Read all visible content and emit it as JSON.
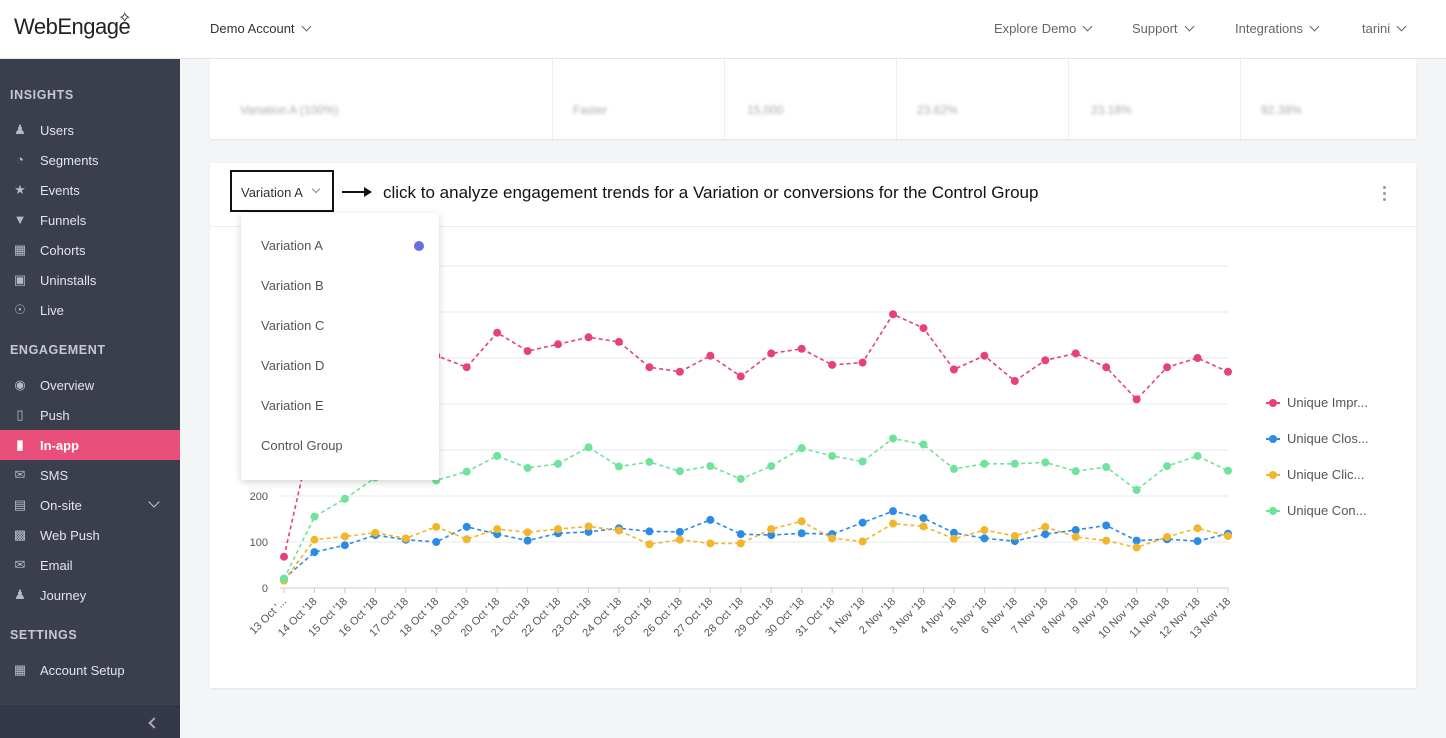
{
  "header": {
    "logo": "WebEngage",
    "account": "Demo Account",
    "nav": [
      "Explore Demo",
      "Support",
      "Integrations",
      "tarini"
    ]
  },
  "sidebar": {
    "sections": [
      {
        "title": "INSIGHTS",
        "items": [
          {
            "label": "Users",
            "icon": "users-icon"
          },
          {
            "label": "Segments",
            "icon": "pie-icon"
          },
          {
            "label": "Events",
            "icon": "star-icon"
          },
          {
            "label": "Funnels",
            "icon": "funnel-icon"
          },
          {
            "label": "Cohorts",
            "icon": "grid-icon"
          },
          {
            "label": "Uninstalls",
            "icon": "uninstall-icon"
          },
          {
            "label": "Live",
            "icon": "live-icon"
          }
        ]
      },
      {
        "title": "ENGAGEMENT",
        "items": [
          {
            "label": "Overview",
            "icon": "eye-icon"
          },
          {
            "label": "Push",
            "icon": "mobile-icon"
          },
          {
            "label": "In-app",
            "icon": "inapp-icon",
            "active": true
          },
          {
            "label": "SMS",
            "icon": "sms-icon"
          },
          {
            "label": "On-site",
            "icon": "onsite-icon",
            "expandable": true
          },
          {
            "label": "Web Push",
            "icon": "webpush-icon"
          },
          {
            "label": "Email",
            "icon": "email-icon"
          },
          {
            "label": "Journey",
            "icon": "journey-icon"
          }
        ]
      },
      {
        "title": "SETTINGS",
        "items": [
          {
            "label": "Account Setup",
            "icon": "setup-icon"
          }
        ]
      }
    ]
  },
  "top_table": {
    "cells": [
      "Variation A (100%)",
      "Faster",
      "15,000",
      "23.62%",
      "23.18%",
      "92.38%"
    ]
  },
  "chart_header": {
    "selected_variation": "Variation A",
    "annotation": "click to analyze engagement trends for a Variation or conversions for the Control Group"
  },
  "dropdown": {
    "options": [
      "Variation A",
      "Variation B",
      "Variation C",
      "Variation D",
      "Variation E",
      "Control Group"
    ],
    "selected": 0
  },
  "colors": {
    "accent": "#e94f7b",
    "impressions": "#e6407f",
    "closes": "#2b8ce6",
    "clicks": "#f3b52c",
    "conversions": "#6fe39b",
    "dropdown_dot": "#6b6fdb"
  },
  "chart_data": {
    "type": "line",
    "x": [
      "13 Oct '18",
      "14 Oct '18",
      "15 Oct '18",
      "16 Oct '18",
      "17 Oct '18",
      "18 Oct '18",
      "19 Oct '18",
      "20 Oct '18",
      "21 Oct '18",
      "22 Oct '18",
      "23 Oct '18",
      "24 Oct '18",
      "25 Oct '18",
      "26 Oct '18",
      "27 Oct '18",
      "28 Oct '18",
      "29 Oct '18",
      "30 Oct '18",
      "31 Oct '18",
      "1 Nov '18",
      "2 Nov '18",
      "3 Nov '18",
      "4 Nov '18",
      "5 Nov '18",
      "6 Nov '18",
      "7 Nov '18",
      "8 Nov '18",
      "9 Nov '18",
      "10 Nov '18",
      "11 Nov '18",
      "12 Nov '18",
      "13 Nov '18"
    ],
    "x_tick_labels": [
      "13 Oct '...",
      "14 Oct '18",
      "15 Oct '18",
      "16 Oct '18",
      "17 Oct '18",
      "18 Oct '18",
      "19 Oct '18",
      "20 Oct '18",
      "21 Oct '18",
      "22 Oct '18",
      "23 Oct '18",
      "24 Oct '18",
      "25 Oct '18",
      "26 Oct '18",
      "27 Oct '18",
      "28 Oct '18",
      "29 Oct '18",
      "30 Oct '18",
      "31 Oct '18",
      "1 Nov '18",
      "2 Nov '18",
      "3 Nov '18",
      "4 Nov '18",
      "5 Nov '18",
      "6 Nov '18",
      "7 Nov '18",
      "8 Nov '18",
      "9 Nov '18",
      "10 Nov '18",
      "11 Nov '18",
      "12 Nov '18",
      "13 Nov '18"
    ],
    "y_ticks": [
      0,
      100,
      200
    ],
    "ylim": [
      0,
      700
    ],
    "legend_position": "right",
    "series": [
      {
        "name": "Unique Impr...",
        "color": "#e6407f",
        "values": [
          68,
          360,
          455,
          500,
          510,
          505,
          480,
          555,
          515,
          530,
          545,
          535,
          480,
          470,
          505,
          460,
          510,
          520,
          485,
          490,
          595,
          565,
          475,
          505,
          450,
          495,
          510,
          480,
          410,
          480,
          500,
          470
        ]
      },
      {
        "name": "Unique Clos...",
        "color": "#2b8ce6",
        "values": [
          20,
          78,
          93,
          115,
          105,
          100,
          133,
          117,
          103,
          119,
          122,
          130,
          123,
          122,
          148,
          117,
          115,
          119,
          117,
          142,
          167,
          152,
          120,
          108,
          102,
          117,
          126,
          136,
          103,
          106,
          102,
          118
        ]
      },
      {
        "name": "Unique Clic...",
        "color": "#f3b52c",
        "values": [
          16,
          105,
          112,
          120,
          108,
          133,
          106,
          128,
          121,
          128,
          134,
          125,
          95,
          105,
          97,
          97,
          128,
          145,
          108,
          101,
          140,
          134,
          107,
          126,
          113,
          133,
          111,
          103,
          88,
          111,
          130,
          113
        ]
      },
      {
        "name": "Unique Con...",
        "color": "#6fe39b",
        "values": [
          20,
          155,
          194,
          240,
          262,
          234,
          253,
          287,
          261,
          270,
          306,
          264,
          274,
          254,
          265,
          237,
          265,
          304,
          287,
          275,
          325,
          312,
          259,
          270,
          270,
          273,
          254,
          263,
          213,
          265,
          287,
          255
        ]
      }
    ]
  }
}
